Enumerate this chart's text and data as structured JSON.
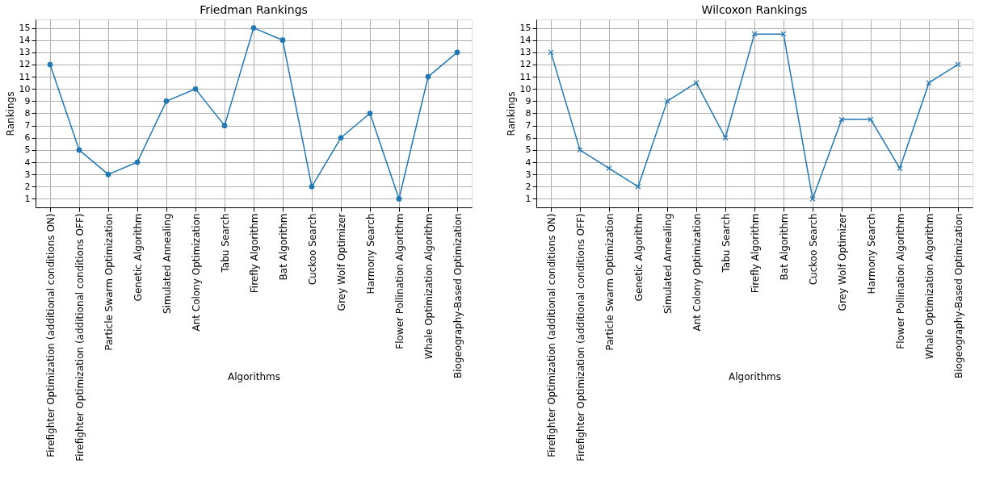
{
  "chart_data": [
    {
      "type": "line",
      "title": "Friedman Rankings",
      "xlabel": "Algorithms",
      "ylabel": "Rankings",
      "marker": "circle",
      "grid": true,
      "legend": false,
      "categories": [
        "Firefighter Optimization (additional conditions ON)",
        "Firefighter Optimization (additional conditions OFF)",
        "Particle Swarm Optimization",
        "Genetic Algorithm",
        "Simulated Annealing",
        "Ant Colony Optimization",
        "Tabu Search",
        "Firefly Algorithm",
        "Bat Algorithm",
        "Cuckoo Search",
        "Grey Wolf Optimizer",
        "Harmony Search",
        "Flower Pollination Algorithm",
        "Whale Optimization Algorithm",
        "Biogeography-Based Optimization"
      ],
      "series": [
        {
          "color": "#1f77b4",
          "values": [
            12,
            5,
            3,
            4,
            9,
            10,
            7,
            15,
            14,
            2,
            6,
            8,
            1,
            11,
            13
          ]
        }
      ],
      "ylim": [
        0.3,
        15.7
      ],
      "yticks": [
        1,
        2,
        3,
        4,
        5,
        6,
        7,
        8,
        9,
        10,
        11,
        12,
        13,
        14,
        15
      ]
    },
    {
      "type": "line",
      "title": "Wilcoxon Rankings",
      "xlabel": "Algorithms",
      "ylabel": "Rankings",
      "marker": "cross",
      "grid": true,
      "legend": false,
      "categories": [
        "Firefighter Optimization (additional conditions ON)",
        "Firefighter Optimization (additional conditions OFF)",
        "Particle Swarm Optimization",
        "Genetic Algorithm",
        "Simulated Annealing",
        "Ant Colony Optimization",
        "Tabu Search",
        "Firefly Algorithm",
        "Bat Algorithm",
        "Cuckoo Search",
        "Grey Wolf Optimizer",
        "Harmony Search",
        "Flower Pollination Algorithm",
        "Whale Optimization Algorithm",
        "Biogeography-Based Optimization"
      ],
      "series": [
        {
          "color": "#1f77b4",
          "values": [
            13,
            5,
            3.5,
            2,
            9,
            10.5,
            6,
            14.5,
            14.5,
            1,
            7.5,
            7.5,
            3.5,
            10.5,
            12
          ]
        }
      ],
      "ylim": [
        0.3,
        15.7
      ],
      "yticks": [
        1,
        2,
        3,
        4,
        5,
        6,
        7,
        8,
        9,
        10,
        11,
        12,
        13,
        14,
        15
      ]
    }
  ]
}
